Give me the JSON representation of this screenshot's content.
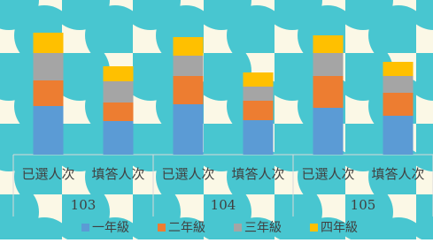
{
  "chart_data": {
    "type": "bar",
    "stacked": true,
    "groups": [
      "103",
      "104",
      "105"
    ],
    "categories": [
      "已選人次",
      "填答人次",
      "已選人次",
      "填答人次",
      "已選人次",
      "填答人次"
    ],
    "series": [
      {
        "name": "一年級",
        "color": "#5b9bd5",
        "values": [
          55,
          38,
          57,
          39,
          53,
          44
        ]
      },
      {
        "name": "二年級",
        "color": "#ed7d31",
        "values": [
          29,
          21,
          32,
          22,
          36,
          26
        ]
      },
      {
        "name": "三年級",
        "color": "#a5a5a5",
        "values": [
          31,
          24,
          23,
          16,
          26,
          19
        ]
      },
      {
        "name": "四年級",
        "color": "#ffc000",
        "values": [
          23,
          17,
          21,
          16,
          20,
          16
        ]
      }
    ],
    "ylim": [
      0,
      150
    ]
  }
}
